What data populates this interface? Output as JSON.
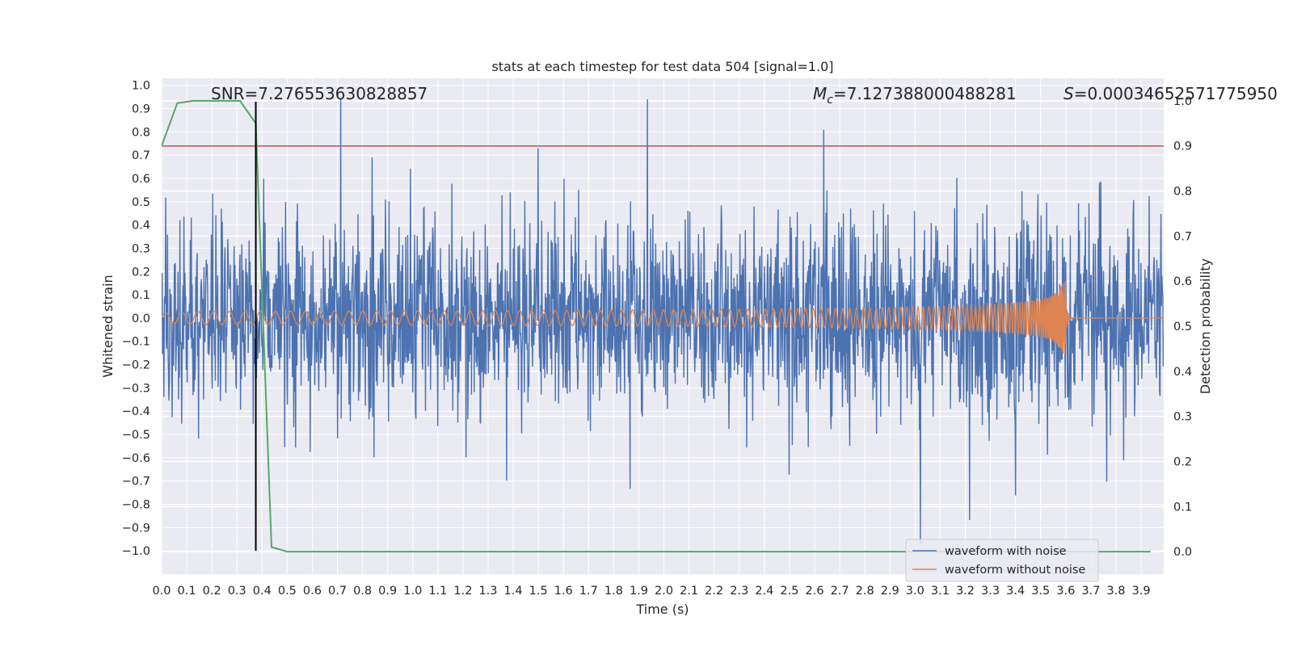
{
  "chart_data": {
    "type": "line",
    "title": "stats at each timestep for test data 504 [signal=1.0]",
    "xlabel": "Time (s)",
    "ylabel_left": "Whitened strain",
    "ylabel_right": "Detection probability",
    "xlim": [
      0.0,
      3.99
    ],
    "ylim_left": [
      -1.1,
      1.03
    ],
    "ylim_right": [
      -0.05,
      1.05
    ],
    "grid": true,
    "x_ticks": [
      "0.0",
      "0.1",
      "0.2",
      "0.3",
      "0.4",
      "0.5",
      "0.6",
      "0.7",
      "0.8",
      "0.9",
      "1.0",
      "1.1",
      "1.2",
      "1.3",
      "1.4",
      "1.5",
      "1.6",
      "1.7",
      "1.8",
      "1.9",
      "2.0",
      "2.1",
      "2.2",
      "2.3",
      "2.4",
      "2.5",
      "2.6",
      "2.7",
      "2.8",
      "2.9",
      "3.0",
      "3.1",
      "3.2",
      "3.3",
      "3.4",
      "3.5",
      "3.6",
      "3.7",
      "3.8",
      "3.9"
    ],
    "y_ticks_left": [
      "1.0",
      "0.9",
      "0.8",
      "0.7",
      "0.6",
      "0.5",
      "0.4",
      "0.3",
      "0.2",
      "0.1",
      "0.0",
      "−0.1",
      "−0.2",
      "−0.3",
      "−0.4",
      "−0.5",
      "−0.6",
      "−0.7",
      "−0.8",
      "−0.9",
      "−1.0"
    ],
    "y_tick_values_left": [
      1.0,
      0.9,
      0.8,
      0.7,
      0.6,
      0.5,
      0.4,
      0.3,
      0.2,
      0.1,
      0.0,
      -0.1,
      -0.2,
      -0.3,
      -0.4,
      -0.5,
      -0.6,
      -0.7,
      -0.8,
      -0.9,
      -1.0
    ],
    "y_ticks_right": [
      "1.0",
      "0.9",
      "0.8",
      "0.7",
      "0.6",
      "0.5",
      "0.4",
      "0.3",
      "0.2",
      "0.1",
      "0.0"
    ],
    "y_tick_values_right": [
      1.0,
      0.9,
      0.8,
      0.7,
      0.6,
      0.5,
      0.4,
      0.3,
      0.2,
      0.1,
      0.0
    ],
    "annotations": {
      "snr": "SNR=7.276553630828857",
      "mc_symbol": "M",
      "mc_subscript": "c",
      "mc_value": "=7.127388000488281",
      "s_symbol": "S",
      "s_value": "=0.00034652571775950"
    },
    "threshold": {
      "axis": "right",
      "value": 0.9
    },
    "marker_time": 0.375,
    "detection_probability": {
      "axis": "right",
      "x": [
        0.0,
        0.0625,
        0.125,
        0.1875,
        0.25,
        0.3125,
        0.375,
        0.4375,
        0.5,
        0.5625,
        0.625,
        3.9375
      ],
      "y": [
        0.9,
        0.995,
        1.0,
        1.0,
        1.0,
        1.0,
        0.95,
        0.01,
        0.0,
        0.0,
        0.0,
        0.0
      ]
    },
    "series": [
      {
        "name": "waveform with noise",
        "amplitude_range": [
          -0.97,
          0.94
        ]
      },
      {
        "name": "waveform without noise",
        "peak_amplitude": 0.16,
        "merger_time": 3.6
      }
    ],
    "legend_position": "lower-right",
    "colors": {
      "noisy": "#4c72b0",
      "clean": "#dd8452",
      "probability": "#55a868",
      "threshold": "#c44e52",
      "marker": "#000000",
      "plot_bg": "#eaeaf2",
      "grid": "#ffffff"
    }
  }
}
